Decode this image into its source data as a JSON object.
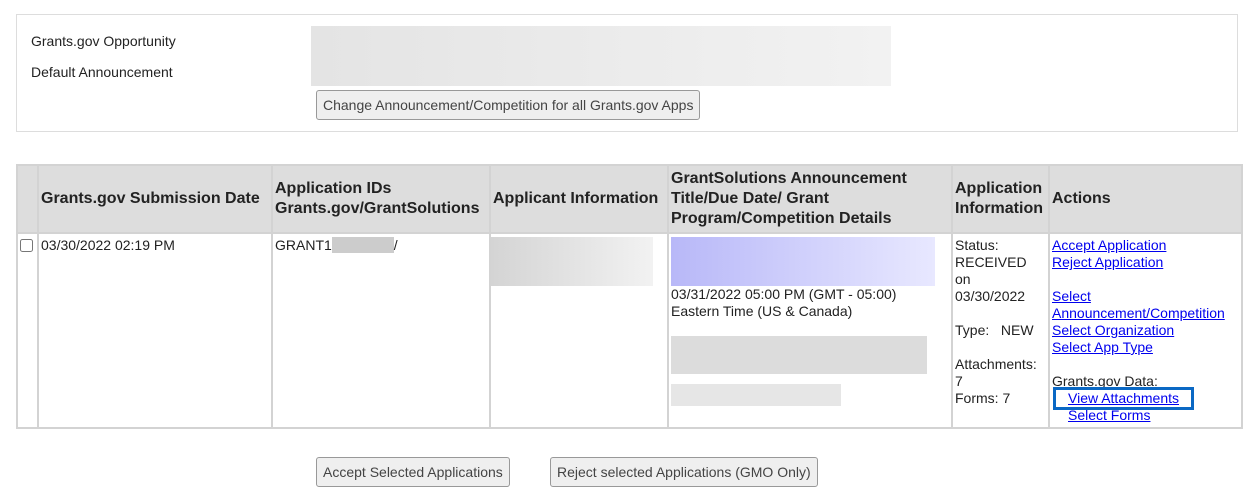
{
  "top": {
    "opportunity_label": "Grants.gov Opportunity",
    "announcement_label": "Default Announcement",
    "change_button": "Change Announcement/Competition for all Grants.gov Apps"
  },
  "table": {
    "headers": [
      "",
      "Grants.gov Submission Date",
      "Application IDs Grants.gov/GrantSolutions",
      "Applicant Information",
      "GrantSolutions Announcement Title/Due Date/ Grant Program/Competition Details",
      "Application Information",
      "Actions"
    ],
    "row": {
      "checked": false,
      "submission_date": "03/30/2022 02:19 PM",
      "app_id_prefix": "GRANT1",
      "app_id_suffix": "/",
      "due_date": "03/31/2022 05:00 PM (GMT - 05:00)",
      "timezone": "Eastern Time (US & Canada)",
      "status_label": "Status:",
      "status": "RECEIVED",
      "on_label": "on",
      "status_date": "03/30/2022",
      "type_label": "Type:",
      "type": "NEW",
      "attachments_label": "Attachments:",
      "attachments": "7",
      "forms_label": "Forms:",
      "forms": "7",
      "actions": {
        "accept": "Accept Application",
        "reject": "Reject Application",
        "select_announcement_1": "Select",
        "select_announcement_2": "Announcement/Competition",
        "select_org": "Select Organization",
        "select_app_type": "Select App Type",
        "grants_data_label": "Grants.gov Data:",
        "view_attachments": "View Attachments",
        "select_forms": "Select Forms"
      }
    }
  },
  "bottom": {
    "accept_selected": "Accept Selected Applications",
    "reject_selected": "Reject selected Applications (GMO Only)"
  },
  "colors": {
    "link": "#0000ee",
    "focus_outline": "#0a68c4",
    "header_bg": "#dddddd"
  }
}
